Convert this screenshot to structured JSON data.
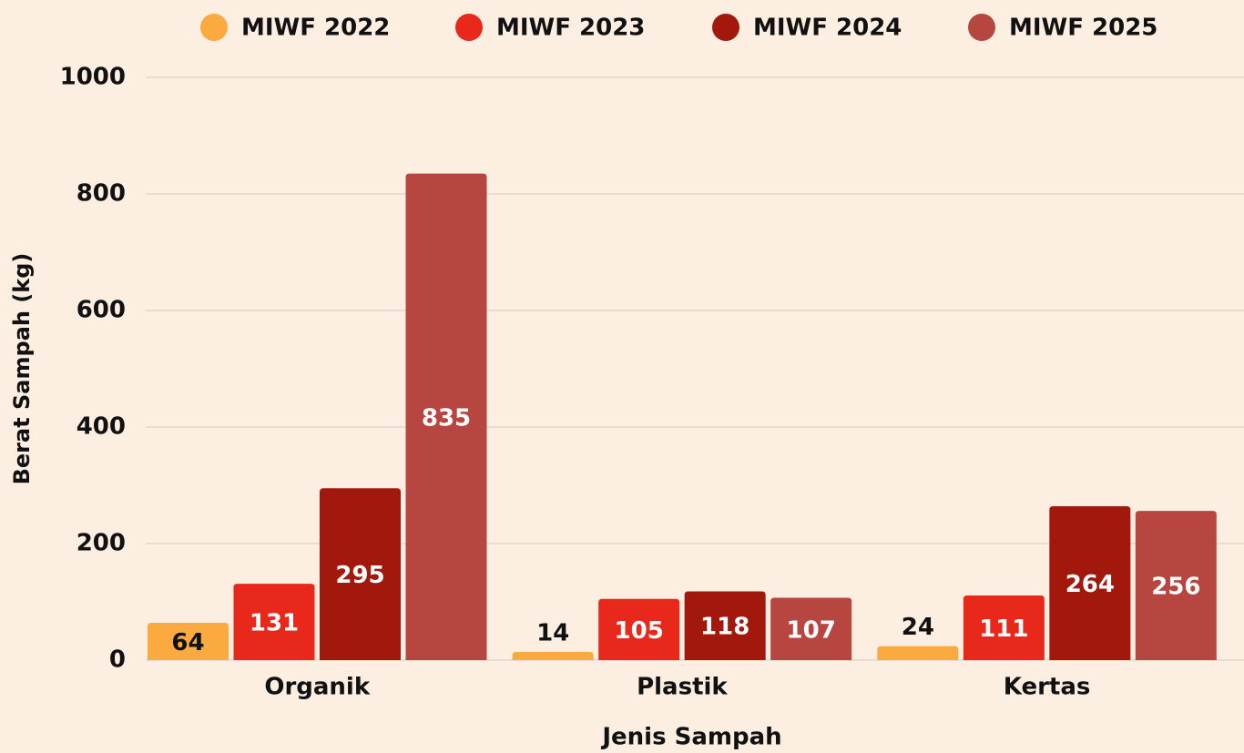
{
  "chart_data": {
    "type": "bar",
    "categories": [
      "Organik",
      "Plastik",
      "Kertas"
    ],
    "series": [
      {
        "name": "MIWF 2022",
        "color": "#fbaa3f",
        "values": [
          64,
          14,
          24
        ]
      },
      {
        "name": "MIWF 2023",
        "color": "#e8281a",
        "values": [
          131,
          105,
          111
        ]
      },
      {
        "name": "MIWF 2024",
        "color": "#a3180c",
        "values": [
          295,
          118,
          264
        ]
      },
      {
        "name": "MIWF 2025",
        "color": "#b84640",
        "values": [
          835,
          107,
          256
        ]
      }
    ],
    "xlabel": "Jenis Sampah",
    "ylabel": "Berat Sampah (kg)",
    "ylim": [
      0,
      1000
    ],
    "yticks": [
      0,
      200,
      400,
      600,
      800,
      1000
    ],
    "grid": true,
    "legend": "top"
  }
}
